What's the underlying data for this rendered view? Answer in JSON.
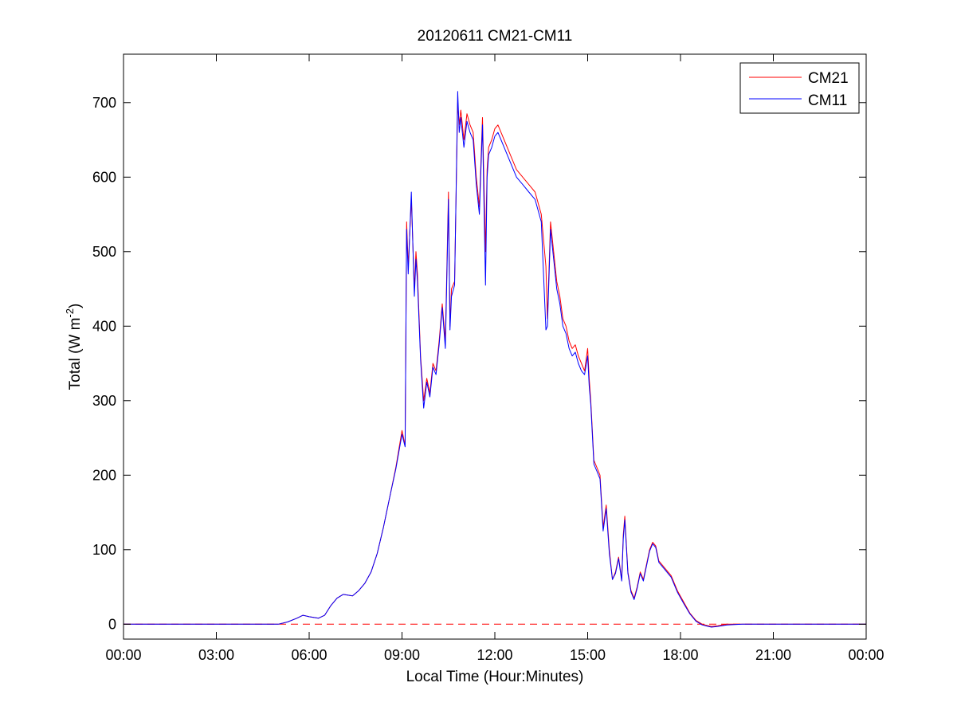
{
  "chart_data": {
    "type": "line",
    "title": "20120611 CM21-CM11",
    "xlabel": "Local Time (Hour:Minutes)",
    "ylabel": {
      "main": "Total (W m",
      "sup": "-2",
      "close": ")"
    },
    "x_unit": "hours",
    "xlim": [
      0,
      24
    ],
    "ylim": [
      -20,
      765
    ],
    "x_ticks": [
      {
        "value": 0,
        "label": "00:00"
      },
      {
        "value": 3,
        "label": "03:00"
      },
      {
        "value": 6,
        "label": "06:00"
      },
      {
        "value": 9,
        "label": "09:00"
      },
      {
        "value": 12,
        "label": "12:00"
      },
      {
        "value": 15,
        "label": "15:00"
      },
      {
        "value": 18,
        "label": "18:00"
      },
      {
        "value": 21,
        "label": "21:00"
      },
      {
        "value": 24,
        "label": "00:00"
      }
    ],
    "y_ticks": [
      {
        "value": 0,
        "label": "0"
      },
      {
        "value": 100,
        "label": "100"
      },
      {
        "value": 200,
        "label": "200"
      },
      {
        "value": 300,
        "label": "300"
      },
      {
        "value": 400,
        "label": "400"
      },
      {
        "value": 500,
        "label": "500"
      },
      {
        "value": 600,
        "label": "600"
      },
      {
        "value": 700,
        "label": "700"
      }
    ],
    "grid": false,
    "legend_position": "top-right",
    "reference_line": {
      "y": 0,
      "style": "dashed",
      "color": "#ff0000"
    },
    "series": [
      {
        "name": "CM21",
        "color": "#ff0000",
        "x": [
          0,
          1,
          2,
          3,
          4,
          5,
          5.3,
          5.6,
          5.8,
          6.0,
          6.3,
          6.5,
          6.7,
          6.9,
          7.1,
          7.4,
          7.6,
          7.8,
          8.0,
          8.2,
          8.4,
          8.6,
          8.8,
          9.0,
          9.1,
          9.15,
          9.2,
          9.3,
          9.4,
          9.45,
          9.5,
          9.6,
          9.7,
          9.8,
          9.9,
          10.0,
          10.1,
          10.2,
          10.3,
          10.4,
          10.5,
          10.55,
          10.6,
          10.7,
          10.8,
          10.85,
          10.9,
          11.0,
          11.1,
          11.2,
          11.3,
          11.4,
          11.5,
          11.6,
          11.7,
          11.75,
          11.8,
          11.9,
          12.0,
          12.1,
          12.2,
          12.3,
          12.5,
          12.7,
          12.9,
          13.1,
          13.3,
          13.5,
          13.65,
          13.7,
          13.8,
          13.9,
          14.0,
          14.1,
          14.2,
          14.3,
          14.4,
          14.5,
          14.6,
          14.7,
          14.8,
          14.9,
          15.0,
          15.05,
          15.1,
          15.2,
          15.3,
          15.4,
          15.5,
          15.6,
          15.7,
          15.8,
          15.9,
          16.0,
          16.1,
          16.15,
          16.2,
          16.3,
          16.4,
          16.5,
          16.6,
          16.7,
          16.8,
          16.9,
          17.0,
          17.1,
          17.2,
          17.3,
          17.5,
          17.7,
          17.9,
          18.1,
          18.3,
          18.5,
          18.7,
          18.9,
          19.0,
          19.2,
          19.5,
          20,
          21,
          22,
          23,
          24
        ],
        "y": [
          0,
          0,
          0,
          0,
          0,
          0,
          3,
          8,
          12,
          10,
          8,
          12,
          25,
          35,
          40,
          38,
          45,
          55,
          70,
          95,
          130,
          170,
          210,
          260,
          240,
          540,
          480,
          570,
          450,
          500,
          470,
          360,
          300,
          330,
          310,
          350,
          340,
          380,
          430,
          380,
          580,
          400,
          450,
          460,
          700,
          670,
          690,
          650,
          685,
          670,
          660,
          600,
          560,
          680,
          500,
          610,
          640,
          650,
          665,
          670,
          660,
          650,
          630,
          610,
          600,
          590,
          580,
          550,
          480,
          410,
          540,
          500,
          460,
          440,
          410,
          400,
          380,
          370,
          375,
          360,
          350,
          340,
          370,
          330,
          300,
          220,
          210,
          200,
          130,
          160,
          100,
          60,
          70,
          90,
          60,
          120,
          145,
          70,
          45,
          35,
          50,
          70,
          60,
          80,
          100,
          110,
          105,
          85,
          75,
          65,
          45,
          30,
          15,
          5,
          0,
          -2,
          -3,
          -2,
          0,
          0,
          0,
          0,
          0,
          0
        ]
      },
      {
        "name": "CM11",
        "color": "#0000ff",
        "x": [
          0,
          1,
          2,
          3,
          4,
          5,
          5.3,
          5.6,
          5.8,
          6.0,
          6.3,
          6.5,
          6.7,
          6.9,
          7.1,
          7.4,
          7.6,
          7.8,
          8.0,
          8.2,
          8.4,
          8.6,
          8.8,
          9.0,
          9.1,
          9.15,
          9.2,
          9.3,
          9.4,
          9.45,
          9.5,
          9.6,
          9.7,
          9.8,
          9.9,
          10.0,
          10.1,
          10.2,
          10.3,
          10.4,
          10.5,
          10.55,
          10.6,
          10.7,
          10.8,
          10.85,
          10.9,
          11.0,
          11.1,
          11.2,
          11.3,
          11.4,
          11.5,
          11.6,
          11.7,
          11.75,
          11.8,
          11.9,
          12.0,
          12.1,
          12.2,
          12.3,
          12.5,
          12.7,
          12.9,
          13.1,
          13.3,
          13.5,
          13.65,
          13.7,
          13.8,
          13.9,
          14.0,
          14.1,
          14.2,
          14.3,
          14.4,
          14.5,
          14.6,
          14.7,
          14.8,
          14.9,
          15.0,
          15.05,
          15.1,
          15.2,
          15.3,
          15.4,
          15.5,
          15.6,
          15.7,
          15.8,
          15.9,
          16.0,
          16.1,
          16.15,
          16.2,
          16.3,
          16.4,
          16.5,
          16.6,
          16.7,
          16.8,
          16.9,
          17.0,
          17.1,
          17.2,
          17.3,
          17.5,
          17.7,
          17.9,
          18.1,
          18.3,
          18.5,
          18.7,
          18.9,
          19.0,
          19.2,
          19.5,
          20,
          21,
          22,
          23,
          24
        ],
        "y": [
          0,
          0,
          0,
          0,
          0,
          0,
          3,
          8,
          12,
          10,
          8,
          12,
          25,
          35,
          40,
          38,
          45,
          55,
          70,
          95,
          130,
          170,
          208,
          255,
          238,
          530,
          470,
          580,
          440,
          490,
          460,
          355,
          290,
          325,
          305,
          345,
          335,
          375,
          425,
          370,
          570,
          395,
          440,
          455,
          715,
          660,
          680,
          640,
          675,
          660,
          650,
          590,
          550,
          670,
          455,
          600,
          630,
          640,
          655,
          660,
          650,
          640,
          620,
          600,
          590,
          580,
          570,
          540,
          395,
          400,
          530,
          490,
          450,
          430,
          400,
          390,
          370,
          360,
          365,
          350,
          340,
          335,
          360,
          320,
          295,
          215,
          205,
          195,
          125,
          155,
          95,
          60,
          68,
          88,
          58,
          115,
          140,
          68,
          43,
          33,
          48,
          68,
          58,
          78,
          98,
          108,
          103,
          83,
          73,
          63,
          43,
          28,
          14,
          4,
          -1,
          -3,
          -4,
          -3,
          -1,
          0,
          0,
          0,
          0,
          0
        ]
      }
    ]
  }
}
